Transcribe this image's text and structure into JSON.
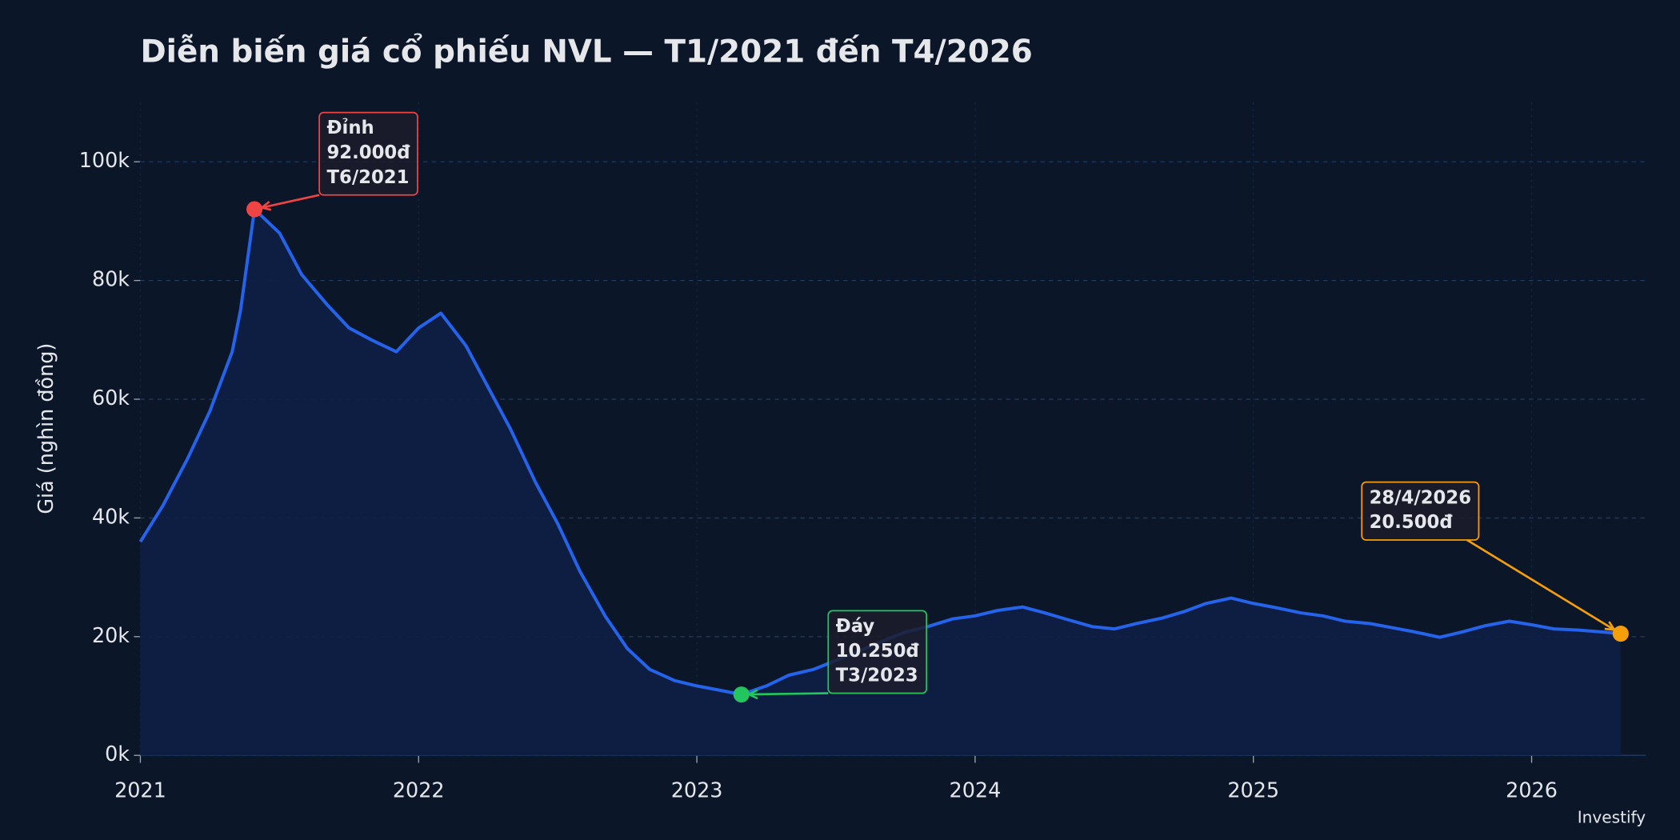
{
  "chart_data": {
    "type": "line",
    "title": "Diễn biến giá cổ phiếu NVL — T1/2021 đến T4/2026",
    "y_label": "Giá (nghìn đồng)",
    "watermark": "Investify",
    "x": [
      2021.0,
      2021.08,
      2021.17,
      2021.25,
      2021.33,
      2021.36,
      2021.41,
      2021.5,
      2021.58,
      2021.67,
      2021.75,
      2021.83,
      2021.92,
      2022.0,
      2022.08,
      2022.17,
      2022.25,
      2022.33,
      2022.42,
      2022.5,
      2022.58,
      2022.67,
      2022.75,
      2022.83,
      2022.92,
      2023.0,
      2023.08,
      2023.16,
      2023.25,
      2023.33,
      2023.42,
      2023.5,
      2023.58,
      2023.67,
      2023.75,
      2023.83,
      2023.92,
      2024.0,
      2024.08,
      2024.17,
      2024.25,
      2024.33,
      2024.42,
      2024.5,
      2024.58,
      2024.67,
      2024.75,
      2024.83,
      2024.92,
      2025.0,
      2025.08,
      2025.17,
      2025.25,
      2025.33,
      2025.42,
      2025.5,
      2025.58,
      2025.67,
      2025.75,
      2025.83,
      2025.92,
      2026.0,
      2026.08,
      2026.17,
      2026.25,
      2026.32
    ],
    "series": [
      {
        "name": "NVL",
        "color": "#2563eb",
        "fill": "#0e1f45",
        "values": [
          36000,
          42000,
          50000,
          58000,
          68000,
          75000,
          92000,
          88000,
          81000,
          76000,
          72000,
          70000,
          68000,
          72000,
          74500,
          69000,
          62000,
          55000,
          46000,
          39000,
          31000,
          23500,
          18000,
          14500,
          12600,
          11700,
          11000,
          10250,
          11700,
          13500,
          14500,
          16000,
          17500,
          19300,
          20800,
          21700,
          23000,
          23500,
          24400,
          25000,
          24000,
          22900,
          21700,
          21300,
          22200,
          23100,
          24200,
          25600,
          26500,
          25600,
          24900,
          24000,
          23500,
          22600,
          22200,
          21500,
          20800,
          19900,
          20800,
          21800,
          22600,
          22000,
          21300,
          21100,
          20800,
          20500
        ]
      }
    ],
    "xlim": [
      2021,
      2026.41
    ],
    "xticks": [
      2021,
      2022,
      2023,
      2024,
      2025,
      2026
    ],
    "ylim": [
      0,
      110000
    ],
    "yticks": [
      {
        "value": 0,
        "label": "0k"
      },
      {
        "value": 20000,
        "label": "20k"
      },
      {
        "value": 40000,
        "label": "40k"
      },
      {
        "value": 60000,
        "label": "60k"
      },
      {
        "value": 80000,
        "label": "80k"
      },
      {
        "value": 100000,
        "label": "100k"
      }
    ],
    "grid": true,
    "annotations": [
      {
        "lines": [
          "Đỉnh",
          "92.000đ",
          "T6/2021"
        ],
        "x": 2021.41,
        "y": 92000,
        "color": "#ef4444"
      },
      {
        "lines": [
          "Đáy",
          "10.250đ",
          "T3/2023"
        ],
        "x": 2023.16,
        "y": 10250,
        "color": "#22c55e"
      },
      {
        "lines": [
          "28/4/2026",
          "20.500đ"
        ],
        "x": 2026.32,
        "y": 20500,
        "color": "#f59e0b"
      }
    ]
  }
}
